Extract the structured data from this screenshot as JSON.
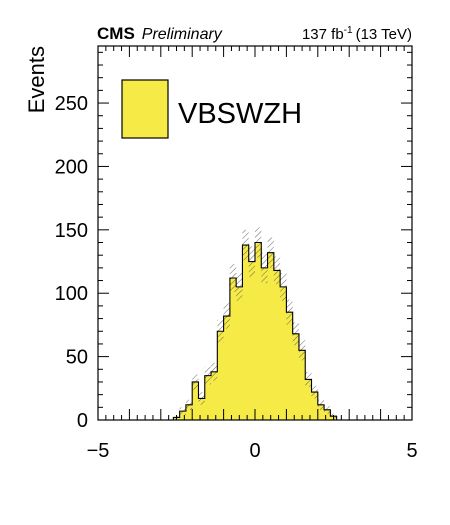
{
  "header": {
    "experiment": "CMS",
    "status": "Preliminary",
    "luminosity_value": "137 fb",
    "luminosity_exponent": "-1",
    "energy": "(13 TeV)"
  },
  "chart_data": {
    "type": "bar",
    "style": "histogram-step",
    "ylabel": "Events",
    "xlabel": "",
    "xlim": [
      -5,
      5
    ],
    "ylim": [
      0,
      295
    ],
    "x_ticks": [
      "−5",
      "0",
      "5"
    ],
    "y_ticks": [
      "0",
      "50",
      "100",
      "150",
      "200",
      "250"
    ],
    "bin_width": 0.2,
    "bin_low_edges": [
      -2.6,
      -2.4,
      -2.2,
      -2.0,
      -1.8,
      -1.6,
      -1.4,
      -1.2,
      -1.0,
      -0.8,
      -0.6,
      -0.4,
      -0.2,
      0.0,
      0.2,
      0.4,
      0.6,
      0.8,
      1.0,
      1.2,
      1.4,
      1.6,
      1.8,
      2.0,
      2.2,
      2.4
    ],
    "series": [
      {
        "name": "VBSWZH",
        "color": "#f5ea46",
        "values": [
          2,
          7,
          12,
          30,
          17,
          35,
          38,
          70,
          82,
          112,
          105,
          138,
          125,
          140,
          120,
          132,
          118,
          105,
          85,
          68,
          55,
          32,
          22,
          12,
          8,
          3
        ],
        "uncertainty": [
          1,
          3,
          4,
          6,
          5,
          7,
          7,
          9,
          10,
          11,
          11,
          12,
          12,
          12,
          12,
          12,
          11,
          11,
          10,
          9,
          8,
          6,
          5,
          4,
          3,
          2
        ]
      }
    ],
    "legend_position": "top-left",
    "grid": false
  }
}
